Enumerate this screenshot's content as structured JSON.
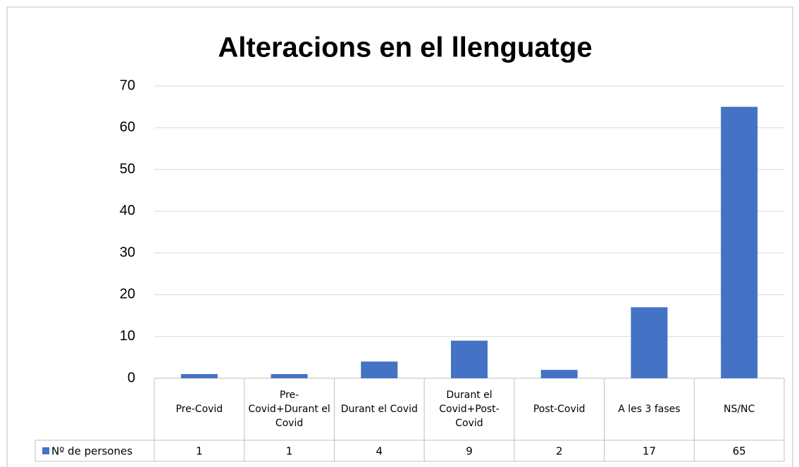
{
  "chart_data": {
    "type": "bar",
    "title": "Alteracions en el llenguatge",
    "categories": [
      "Pre-Covid",
      "Pre-Covid+Durant el Covid",
      "Durant el Covid",
      "Durant el Covid+Post-Covid",
      "Post-Covid",
      "A les 3 fases",
      "NS/NC"
    ],
    "series": [
      {
        "name": "Nº de persones",
        "color": "#4472c4",
        "values": [
          1,
          1,
          4,
          9,
          2,
          17,
          65
        ]
      }
    ],
    "ylim": [
      0,
      70
    ],
    "yticks": [
      0,
      10,
      20,
      30,
      40,
      50,
      60,
      70
    ],
    "grid": true
  }
}
